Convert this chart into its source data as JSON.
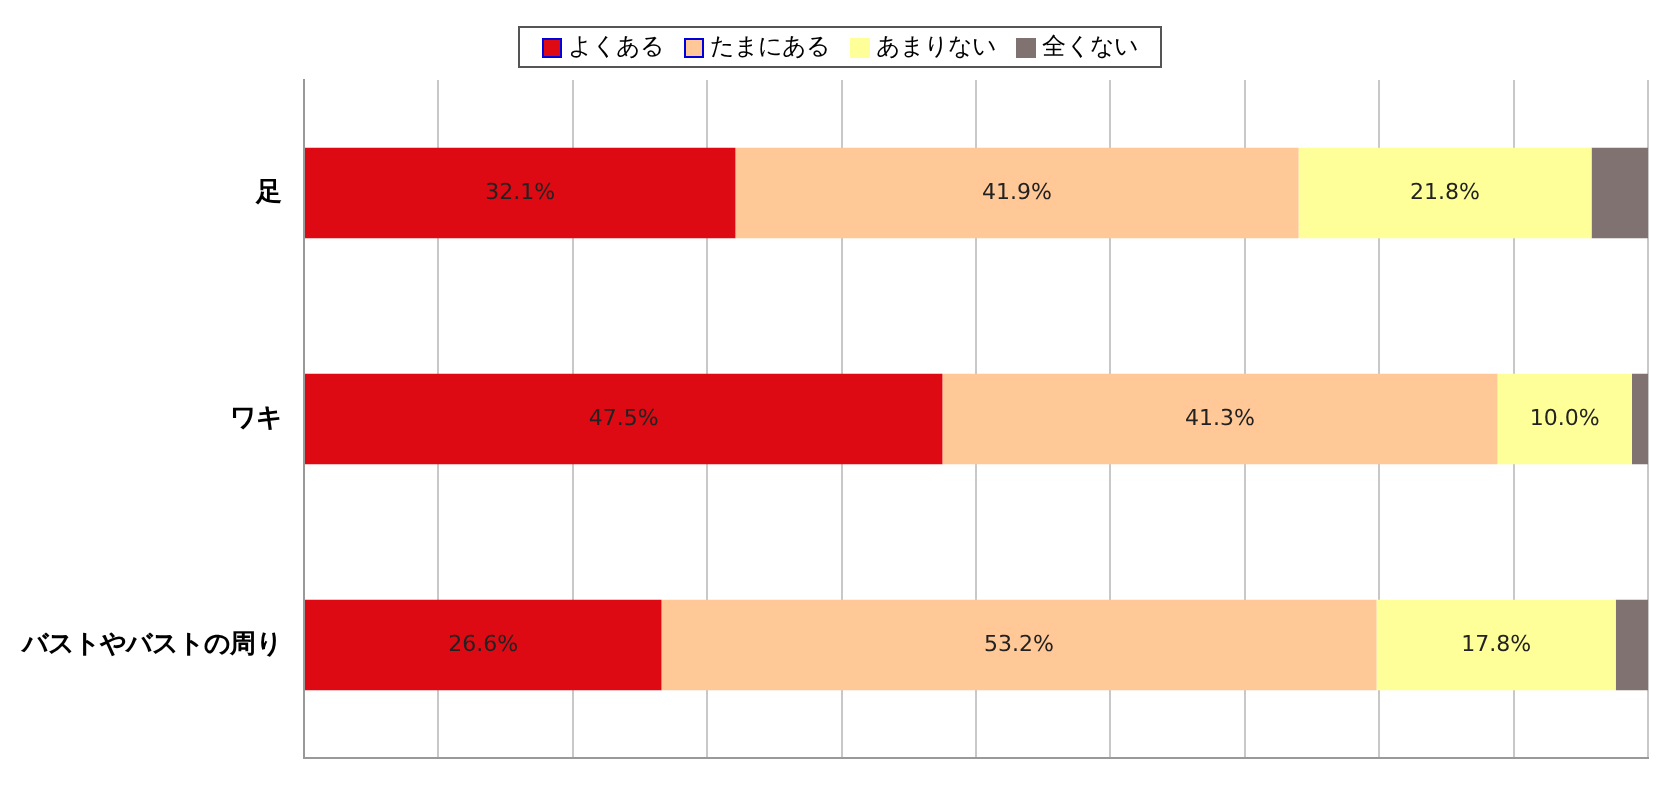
{
  "chart_data": {
    "type": "bar",
    "orientation": "horizontal",
    "stacked": true,
    "categories": [
      "足",
      "ワキ",
      "バストやバストの周り"
    ],
    "series": [
      {
        "name": "よくある",
        "color": "#dd0a14",
        "values": [
          32.1,
          47.5,
          26.6
        ],
        "value_labels": [
          "32.1%",
          "47.5%",
          "26.6%"
        ]
      },
      {
        "name": "たまにある",
        "color": "#ffc896",
        "values": [
          41.9,
          41.3,
          53.2
        ],
        "value_labels": [
          "41.9%",
          "41.3%",
          "53.2%"
        ]
      },
      {
        "name": "あまりない",
        "color": "#ffff99",
        "values": [
          21.8,
          10.0,
          17.8
        ],
        "value_labels": [
          "21.8%",
          "10.0%",
          "17.8%"
        ]
      },
      {
        "name": "全くない",
        "color": "#7f7270",
        "values": [
          4.2,
          1.2,
          2.4
        ],
        "value_labels": [
          null,
          null,
          null
        ]
      }
    ],
    "xlim": [
      0,
      100
    ],
    "xticks": [
      {
        "value": 0,
        "label": null
      },
      {
        "value": 10,
        "label": null
      },
      {
        "value": 20,
        "label": null
      },
      {
        "value": 30,
        "label": null
      },
      {
        "value": 40,
        "label": null
      },
      {
        "value": 50,
        "label": null
      },
      {
        "value": 60,
        "label": null
      },
      {
        "value": 70,
        "label": null
      },
      {
        "value": 80,
        "label": null
      },
      {
        "value": 90,
        "label": null
      },
      {
        "value": 100,
        "label": null
      }
    ],
    "grid": "x",
    "legend": "top",
    "tick_labels": "y"
  }
}
